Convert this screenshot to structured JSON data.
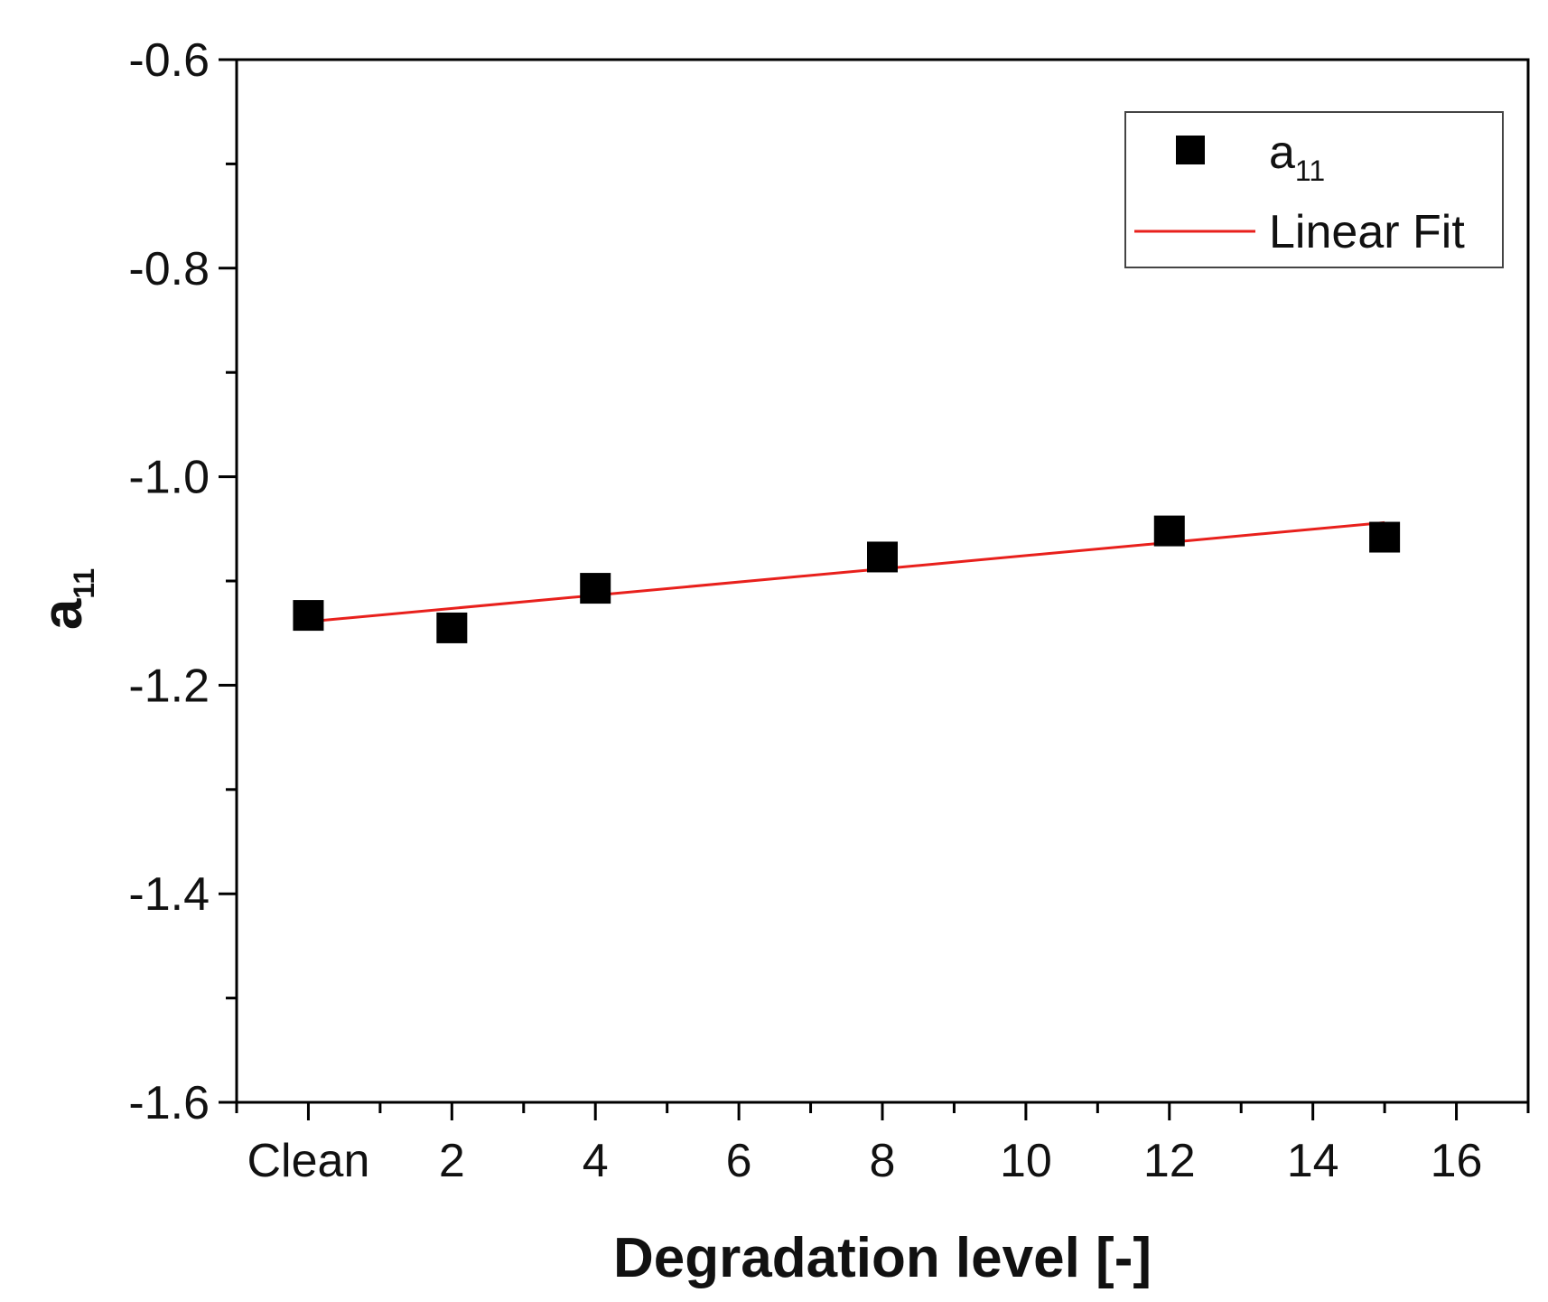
{
  "chart_data": {
    "type": "scatter",
    "title": "",
    "xlabel": "Degradation level [-]",
    "ylabel": {
      "main": "a",
      "sub": "11"
    },
    "xlim": [
      -1,
      17
    ],
    "ylim": [
      -1.6,
      -0.6
    ],
    "x_ticks": [
      {
        "value": 0,
        "label": "Clean"
      },
      {
        "value": 2,
        "label": "2"
      },
      {
        "value": 4,
        "label": "4"
      },
      {
        "value": 6,
        "label": "6"
      },
      {
        "value": 8,
        "label": "8"
      },
      {
        "value": 10,
        "label": "10"
      },
      {
        "value": 12,
        "label": "12"
      },
      {
        "value": 14,
        "label": "14"
      },
      {
        "value": 16,
        "label": "16"
      }
    ],
    "x_minor_step": 1,
    "y_ticks": [
      {
        "value": -0.6,
        "label": "-0.6"
      },
      {
        "value": -0.8,
        "label": "-0.8"
      },
      {
        "value": -1.0,
        "label": "-1.0"
      },
      {
        "value": -1.2,
        "label": "-1.2"
      },
      {
        "value": -1.4,
        "label": "-1.4"
      },
      {
        "value": -1.6,
        "label": "-1.6"
      }
    ],
    "y_minor_step": 0.1,
    "grid": false,
    "legend_position": "top-right",
    "series": [
      {
        "name": "a_11",
        "legend_label": {
          "main": "a",
          "sub": "11"
        },
        "kind": "scatter",
        "marker": "square",
        "color": "#000000",
        "x": [
          0,
          2,
          4,
          8,
          12,
          15
        ],
        "y": [
          -1.133,
          -1.145,
          -1.107,
          -1.077,
          -1.052,
          -1.058
        ]
      },
      {
        "name": "Linear Fit",
        "legend_label": {
          "main": "Linear Fit",
          "sub": ""
        },
        "kind": "line",
        "color": "#e8201c",
        "x": [
          0,
          15
        ],
        "y": [
          -1.139,
          -1.044
        ]
      }
    ]
  }
}
